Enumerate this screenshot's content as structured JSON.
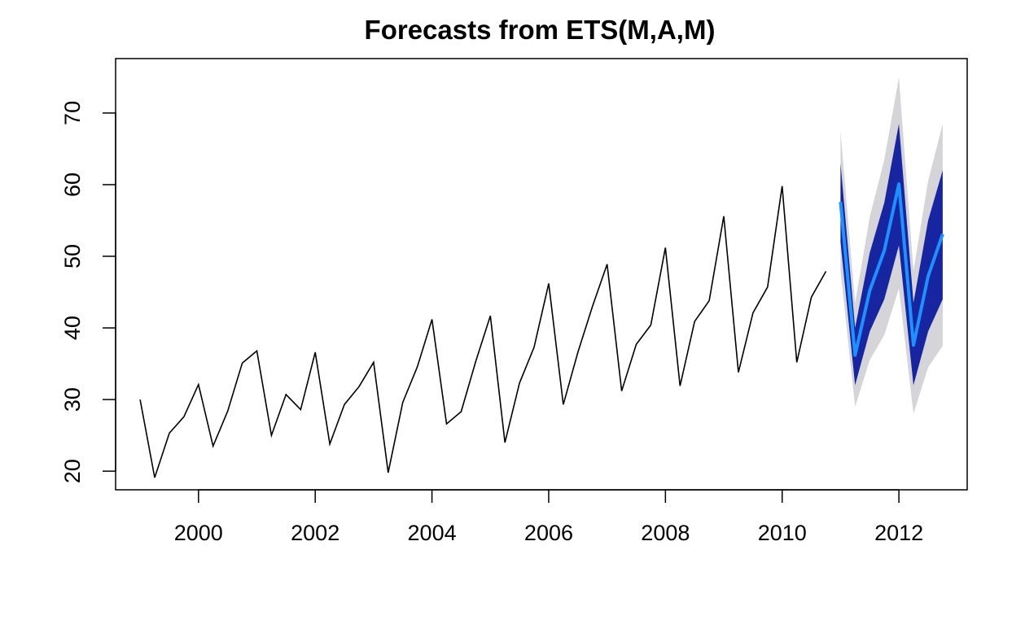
{
  "chart_data": {
    "type": "line",
    "title": "Forecasts from ETS(M,A,M)",
    "xlabel": "",
    "ylabel": "",
    "xlim": [
      1998.58,
      2013.17
    ],
    "ylim": [
      17.4,
      77.6
    ],
    "grid": false,
    "x_ticks": [
      2000,
      2002,
      2004,
      2006,
      2008,
      2010,
      2012
    ],
    "x_tick_labels": [
      "2000",
      "2002",
      "2004",
      "2006",
      "2008",
      "2010",
      "2012"
    ],
    "y_ticks": [
      20,
      30,
      40,
      50,
      60,
      70
    ],
    "y_tick_labels": [
      "20",
      "30",
      "40",
      "50",
      "60",
      "70"
    ],
    "colors": {
      "history": "#000000",
      "forecast": "#1e90ff",
      "band_80": "#1726a0",
      "band_95": "#d5d5d9"
    },
    "series": [
      {
        "role": "history",
        "x_start": 1999.0,
        "step": 0.25,
        "values": [
          30.0,
          19.1,
          25.3,
          27.6,
          32.1,
          23.5,
          28.4,
          35.1,
          36.8,
          25.0,
          30.7,
          28.6,
          36.6,
          23.8,
          29.3,
          31.8,
          35.2,
          19.8,
          29.6,
          34.6,
          41.2,
          26.6,
          28.3,
          35.3,
          41.7,
          24.0,
          32.3,
          37.3,
          46.2,
          29.3,
          36.6,
          43.0,
          48.9,
          31.2,
          37.7,
          40.4,
          51.2,
          31.9,
          40.9,
          43.8,
          55.6,
          33.8,
          42.1,
          45.7,
          59.8,
          35.2,
          44.3,
          47.9
        ]
      },
      {
        "role": "point-forecast",
        "x_start": 2011.0,
        "step": 0.25,
        "values": [
          57.6,
          36.2,
          45.2,
          50.8,
          60.1,
          37.6,
          47.2,
          53.1
        ],
        "lower_80": [
          52.0,
          32.0,
          39.5,
          44.0,
          51.5,
          32.0,
          39.5,
          44.0
        ],
        "upper_80": [
          63.0,
          40.0,
          50.5,
          57.5,
          68.5,
          43.5,
          55.0,
          62.0
        ],
        "lower_95": [
          48.0,
          29.0,
          35.5,
          39.0,
          45.5,
          28.0,
          34.5,
          37.5
        ],
        "upper_95": [
          67.5,
          43.5,
          55.5,
          63.5,
          75.0,
          48.0,
          60.5,
          68.5
        ]
      }
    ]
  }
}
